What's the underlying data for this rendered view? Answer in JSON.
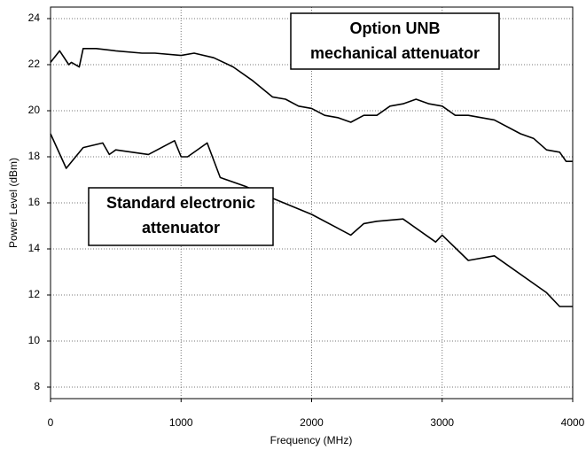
{
  "chart_data": {
    "type": "line",
    "xlabel": "Frequency (MHz)",
    "ylabel": "Power Level (dBm)",
    "xlim": [
      0,
      4000
    ],
    "xticks": [
      0,
      1000,
      2000,
      3000,
      4000
    ],
    "ylim": [
      7.5,
      24.5
    ],
    "yticks": [
      8,
      10,
      12,
      14,
      16,
      18,
      20,
      22,
      24
    ],
    "grid": true,
    "series": [
      {
        "color": "#000000",
        "x": [
          0,
          70,
          140,
          160,
          220,
          250,
          350,
          500,
          700,
          800,
          1000,
          1100,
          1250,
          1400,
          1550,
          1700,
          1800,
          1900,
          2000,
          2100,
          2200,
          2300,
          2400,
          2500,
          2600,
          2700,
          2800,
          2900,
          3000,
          3100,
          3200,
          3400,
          3600,
          3700,
          3800,
          3900,
          3950,
          4000
        ],
        "values": [
          22.1,
          22.6,
          22.0,
          22.1,
          21.9,
          22.7,
          22.7,
          22.6,
          22.5,
          22.5,
          22.4,
          22.5,
          22.3,
          21.9,
          21.3,
          20.6,
          20.5,
          20.2,
          20.1,
          19.8,
          19.7,
          19.5,
          19.8,
          19.8,
          20.2,
          20.3,
          20.5,
          20.3,
          20.2,
          19.8,
          19.8,
          19.6,
          19.0,
          18.8,
          18.3,
          18.2,
          17.8,
          17.8
        ]
      },
      {
        "color": "#000000",
        "x": [
          0,
          120,
          250,
          400,
          450,
          500,
          750,
          950,
          1000,
          1050,
          1200,
          1300,
          1500,
          1700,
          2000,
          2300,
          2400,
          2500,
          2700,
          2950,
          3000,
          3200,
          3400,
          3800,
          3900,
          4000
        ],
        "values": [
          19.0,
          17.5,
          18.4,
          18.6,
          18.1,
          18.3,
          18.1,
          18.7,
          18.0,
          18.0,
          18.6,
          17.1,
          16.7,
          16.2,
          15.5,
          14.6,
          15.1,
          15.2,
          15.3,
          14.3,
          14.6,
          13.5,
          13.7,
          12.1,
          11.5,
          11.5
        ]
      }
    ],
    "annotations": [
      {
        "lines": [
          "Option UNB",
          "mechanical attenuator"
        ]
      },
      {
        "lines": [
          "Standard electronic",
          "attenuator"
        ]
      }
    ]
  }
}
